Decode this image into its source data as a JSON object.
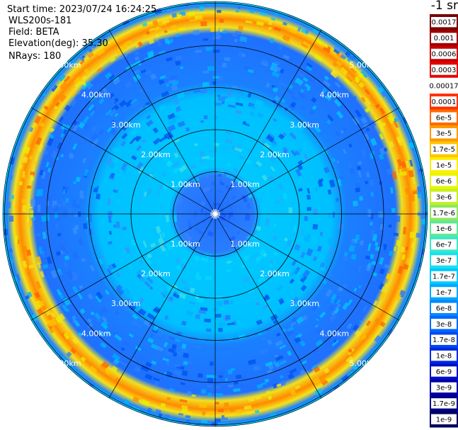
{
  "header": {
    "start_time": "Start time: 2023/07/24 16:24:25",
    "instrument": "WLS200s-181",
    "field": "Field: BETA",
    "elevation": "Elevation(deg): 35.30",
    "nrays": "NRays: 180"
  },
  "unit_label": "-1 sr",
  "plot": {
    "type": "ppi-polar",
    "rays": 180,
    "max_range_km": 5.0,
    "range_ring_labels": [
      "1.00km",
      "2.00km",
      "3.00km",
      "4.00km",
      "5.00km"
    ],
    "spoke_angles_deg": [
      0,
      30,
      60,
      90,
      120,
      150,
      180,
      210,
      240,
      270,
      300,
      330
    ],
    "colors": {
      "background_ring_blue": "#1f6fff",
      "inner_cyan": "#00c8ff",
      "outer_band_yellow": "#f5e31a",
      "outer_band_orange": "#ff7a00",
      "grid": "#000000"
    }
  },
  "colorbar": {
    "labels": [
      "0.0017",
      "0.001",
      "0.0006",
      "0.0003",
      "0.00017",
      "0.0001",
      "6e-5",
      "3e-5",
      "1.7e-5",
      "1e-5",
      "6e-6",
      "3e-6",
      "1.7e-6",
      "1e-6",
      "6e-7",
      "3e-7",
      "1.7e-7",
      "1e-7",
      "6e-8",
      "3e-8",
      "1.7e-8",
      "1e-8",
      "6e-9",
      "3e-9",
      "1.7e-9",
      "1e-9"
    ],
    "colors": [
      "#7a0000",
      "#a00000",
      "#c80000",
      "#e60000",
      "#ffffff",
      "#ff3000",
      "#ff6a00",
      "#ff9800",
      "#ffc400",
      "#ffee00",
      "#e8f500",
      "#c4f020",
      "#8ce860",
      "#5ee898",
      "#3ae8c8",
      "#18e0f0",
      "#00c8ff",
      "#00a8ff",
      "#0088ff",
      "#0068ff",
      "#0048f0",
      "#0028e0",
      "#0010c8",
      "#0000a8",
      "#000088",
      "#000060"
    ]
  }
}
